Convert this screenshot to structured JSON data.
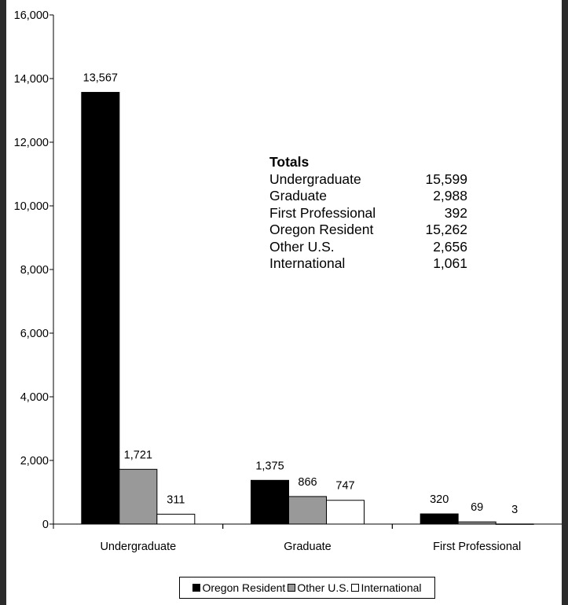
{
  "chart_data": {
    "type": "bar",
    "categories": [
      "Undergraduate",
      "Graduate",
      "First Professional"
    ],
    "series": [
      {
        "name": "Oregon Resident",
        "values": [
          13567,
          1375,
          320
        ],
        "labels": [
          "13,567",
          "1,375",
          "320"
        ],
        "color": "#000000"
      },
      {
        "name": "Other U.S.",
        "values": [
          1721,
          866,
          69
        ],
        "labels": [
          "1,721",
          "866",
          "69"
        ],
        "color": "#999999"
      },
      {
        "name": "International",
        "values": [
          311,
          747,
          3
        ],
        "labels": [
          "311",
          "747",
          "3"
        ],
        "color": "#ffffff"
      }
    ],
    "y_ticks": [
      0,
      2000,
      4000,
      6000,
      8000,
      10000,
      12000,
      14000,
      16000
    ],
    "y_tick_labels": [
      "0",
      "2,000",
      "4,000",
      "6,000",
      "8,000",
      "10,000",
      "12,000",
      "14,000",
      "16,000"
    ],
    "ylim": [
      0,
      16000
    ],
    "grid": false,
    "legend_position": "bottom"
  },
  "totals": {
    "title": "Totals",
    "rows": [
      {
        "label": "Undergraduate",
        "value": "15,599"
      },
      {
        "label": "Graduate",
        "value": "2,988"
      },
      {
        "label": "First Professional",
        "value": "392"
      },
      {
        "label": "Oregon Resident",
        "value": "15,262"
      },
      {
        "label": "Other U.S.",
        "value": "2,656"
      },
      {
        "label": "International",
        "value": "1,061"
      }
    ]
  }
}
